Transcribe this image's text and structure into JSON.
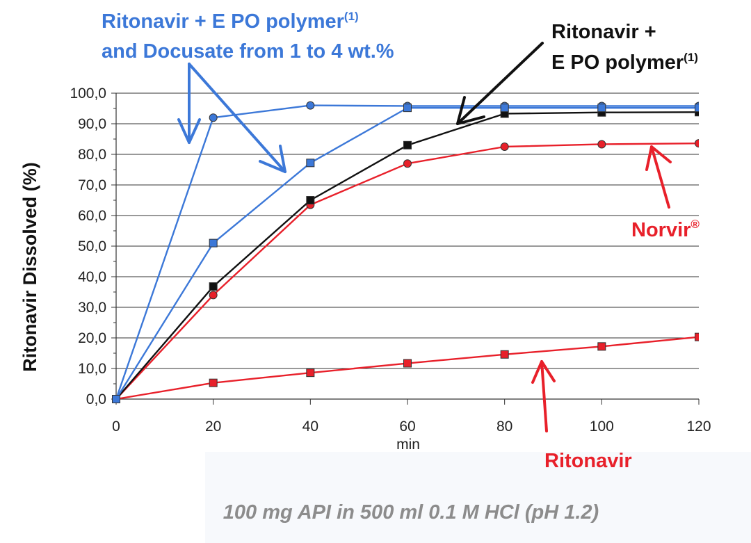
{
  "chart_data": {
    "type": "line",
    "ylabel": "Ritonavir Dissolved (%)",
    "xlabel": "min",
    "x": [
      0,
      20,
      40,
      60,
      80,
      100,
      120
    ],
    "xticks": [
      "0",
      "20",
      "40",
      "60",
      "80",
      "100",
      "120"
    ],
    "xlim": [
      0,
      120
    ],
    "ylim": [
      0,
      100
    ],
    "yticks": [
      "0,0",
      "10,0",
      "20,0",
      "30,0",
      "40,0",
      "50,0",
      "60,0",
      "70,0",
      "80,0",
      "90,0",
      "100,0"
    ],
    "grid": "horizontal",
    "series": [
      {
        "key": "ritonavir",
        "color": "#e8202a",
        "marker": "square",
        "values": [
          0,
          5.3,
          8.6,
          11.7,
          14.6,
          17.2,
          20.3
        ]
      },
      {
        "key": "norvir",
        "color": "#e8202a",
        "marker": "circle",
        "values": [
          0,
          34,
          63.5,
          77,
          82.5,
          83.3,
          83.6
        ]
      },
      {
        "key": "ritonavir_epo",
        "color": "#111111",
        "marker": "square",
        "values": [
          0,
          36.8,
          65,
          83,
          93.3,
          93.7,
          93.8
        ]
      },
      {
        "key": "ritonavir_epo_docusate_a",
        "color": "#3c78d8",
        "marker": "circle",
        "values": [
          0,
          92,
          96,
          95.8,
          95.8,
          95.8,
          95.8
        ]
      },
      {
        "key": "ritonavir_epo_docusate_b",
        "color": "#3c78d8",
        "marker": "square",
        "values": [
          0,
          51,
          77.2,
          95.2,
          95.2,
          95.2,
          95.2
        ]
      }
    ],
    "annotations": {
      "blue_line1": "Ritonavir + E PO polymer",
      "blue_sup": "(1)",
      "blue_line2": "and Docusate from 1 to 4 wt.%",
      "black_line1": "Ritonavir +",
      "black_line2": "E PO polymer",
      "black_sup": "(1)",
      "norvir": "Norvir",
      "norvir_sup": "®",
      "ritonavir": "Ritonavir"
    },
    "colors": {
      "blue": "#3c78d8",
      "black": "#111111",
      "red": "#e8202a"
    }
  },
  "caption": "100 mg API in 500 ml 0.1 M HCl (pH 1.2)"
}
